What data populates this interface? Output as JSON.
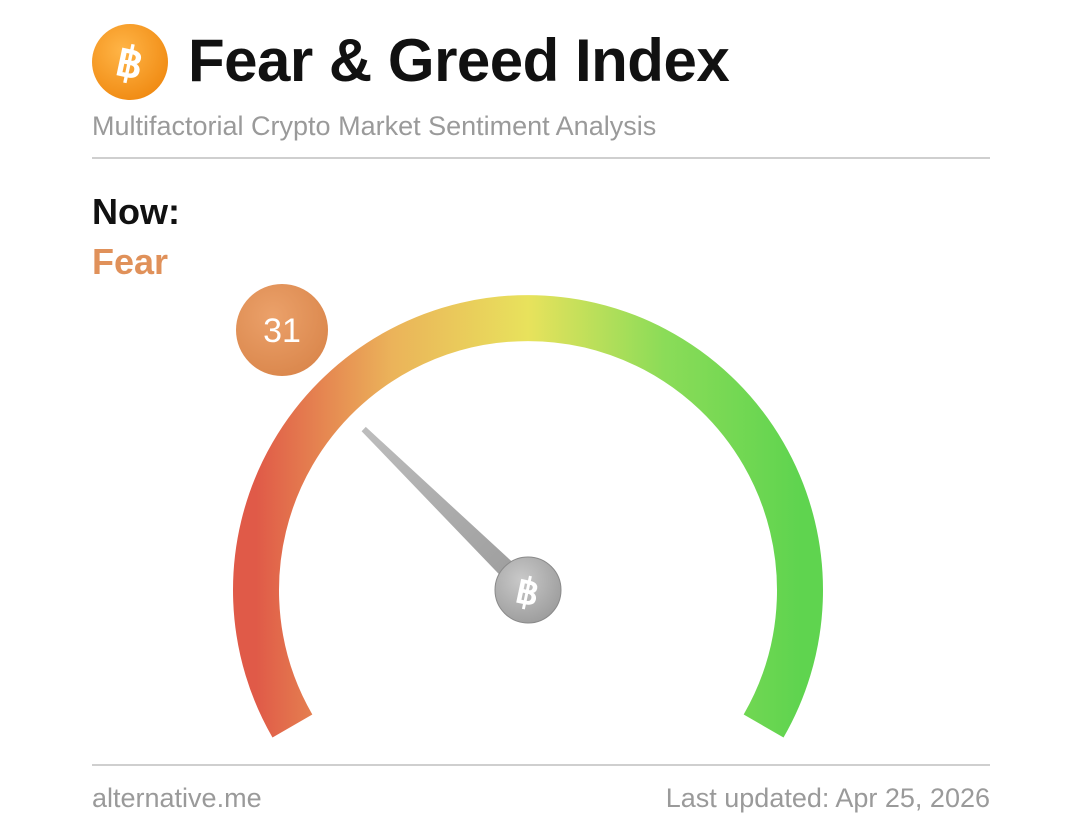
{
  "header": {
    "title": "Fear & Greed Index",
    "subtitle": "Multifactorial Crypto Market Sentiment Analysis",
    "logo_icon": "bitcoin-icon",
    "logo_color": "#f7931a"
  },
  "status": {
    "now_label": "Now:",
    "classification": "Fear",
    "value": 31,
    "value_text": "31",
    "accent_color": "#e0915a"
  },
  "gauge": {
    "min": 0,
    "max": 100,
    "value": 31,
    "colors": [
      "#e05a48",
      "#ebb35a",
      "#e8e25c",
      "#8bdc58",
      "#5fd44f"
    ],
    "hub_icon": "bitcoin-icon"
  },
  "footer": {
    "source": "alternative.me",
    "last_updated": "Last updated: Apr 25, 2026"
  }
}
